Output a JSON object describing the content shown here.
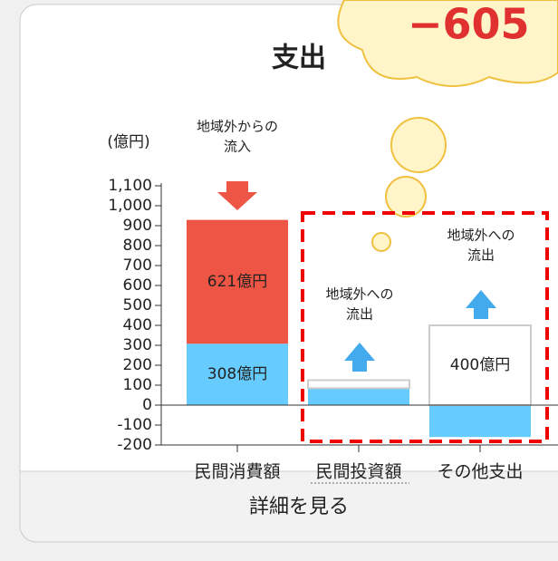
{
  "chart_data": {
    "type": "bar",
    "title": "支出",
    "y_label": "(億円)",
    "callout": "−605",
    "categories": [
      "民間消費額",
      "民間投資額",
      "その他支出"
    ],
    "series": [
      {
        "color": "#66ccff",
        "values": [
          308,
          85,
          -160
        ],
        "value_labels": [
          "308億円",
          null,
          null
        ]
      },
      {
        "color": "#ee5544",
        "values": [
          621,
          null,
          null
        ],
        "value_labels": [
          "621億円",
          null,
          null
        ]
      },
      {
        "color": "#ffffff",
        "values": [
          null,
          40,
          400
        ],
        "value_labels": [
          null,
          null,
          "400億円"
        ]
      }
    ],
    "annotations": [
      [
        "地域外からの",
        "流入"
      ],
      [
        "地域外への",
        "流出"
      ],
      [
        "地域外への",
        "流出"
      ]
    ],
    "ylim": [
      -200,
      1100
    ],
    "yticks": [
      -200,
      -100,
      0,
      100,
      200,
      300,
      400,
      500,
      600,
      700,
      800,
      900,
      {
        "value": 1000,
        "label": "1,000"
      },
      {
        "value": 1100,
        "label": "1,100"
      }
    ],
    "button": "詳細を見る"
  }
}
